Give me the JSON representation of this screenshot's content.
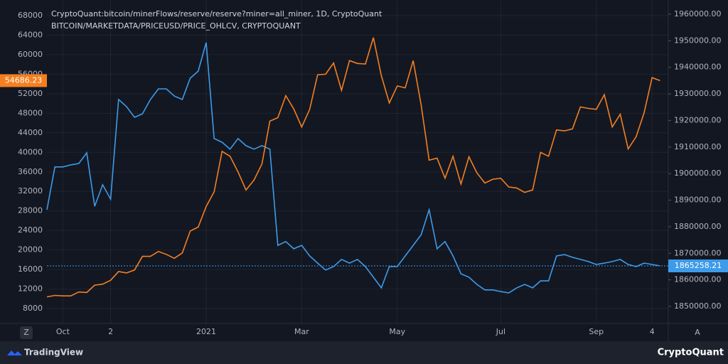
{
  "chart_data": {
    "type": "line",
    "categories": [
      null,
      null,
      "Oct",
      null,
      null,
      null,
      null,
      null,
      "2",
      null,
      null,
      null,
      null,
      null,
      null,
      null,
      null,
      null,
      null,
      null,
      "2021",
      null,
      null,
      null,
      null,
      null,
      null,
      null,
      null,
      null,
      null,
      null,
      "Mar",
      null,
      null,
      null,
      null,
      null,
      null,
      null,
      null,
      null,
      null,
      null,
      "May",
      null,
      null,
      null,
      null,
      null,
      null,
      null,
      null,
      null,
      null,
      null,
      null,
      "Jul",
      null,
      null,
      null,
      null,
      null,
      null,
      null,
      null,
      null,
      null,
      null,
      "Sep",
      null,
      null,
      null,
      null,
      null,
      null,
      "4",
      null
    ],
    "series": [
      {
        "name": "CryptoQuant:bitcoin/minerFlows/reserve/reserve?miner=all_miner, 1D, CryptoQuant",
        "color": "#3d9be9",
        "axis": "y2",
        "values": [
          1886400,
          1902500,
          1902500,
          1903300,
          1903800,
          1907800,
          1887700,
          1895800,
          1890400,
          1927900,
          1925200,
          1921200,
          1922500,
          1927900,
          1931900,
          1931900,
          1929200,
          1927900,
          1935900,
          1938600,
          1949300,
          1913200,
          1911800,
          1909200,
          1913200,
          1910500,
          1909200,
          1910500,
          1909200,
          1873000,
          1874400,
          1871700,
          1873000,
          1869000,
          1866300,
          1863700,
          1865000,
          1867700,
          1866300,
          1867700,
          1865000,
          1861000,
          1857000,
          1865000,
          1865000,
          1869000,
          1873000,
          1877000,
          1886400,
          1871700,
          1874400,
          1869000,
          1862300,
          1861000,
          1858300,
          1856200,
          1856200,
          1855600,
          1855100,
          1857000,
          1858300,
          1857000,
          1859600,
          1859600,
          1869000,
          1869500,
          1868500,
          1867700,
          1866900,
          1865800,
          1866300,
          1866900,
          1867700,
          1865800,
          1865000,
          1866300,
          1865800,
          1865258.21
        ]
      },
      {
        "name": "BITCOIN/MARKETDATA/PRICEUSD/PRICE_OHLCV, CRYPTOQUANT",
        "color": "#f57f20",
        "values": [
          10400,
          10700,
          10600,
          10600,
          11400,
          11300,
          12800,
          13000,
          13800,
          15600,
          15300,
          15900,
          18700,
          18700,
          19700,
          19100,
          18300,
          19400,
          23900,
          24700,
          28900,
          31900,
          40200,
          39200,
          36000,
          32300,
          34300,
          37600,
          46400,
          47100,
          51600,
          48900,
          45200,
          48800,
          55900,
          56000,
          58300,
          52700,
          58800,
          58200,
          58100,
          63500,
          55700,
          50100,
          53600,
          53200,
          58800,
          49700,
          38400,
          38800,
          34700,
          39200,
          33500,
          39100,
          35800,
          33700,
          34500,
          34700,
          32900,
          32700,
          31800,
          32300,
          40000,
          39200,
          44600,
          44400,
          44800,
          49300,
          49000,
          48800,
          51800,
          45200,
          47800,
          40700,
          43200,
          48100,
          55300,
          54686.23
        ]
      }
    ],
    "ylim": [
      4950,
      71200
    ],
    "yticks": [
      8000,
      12000,
      16000,
      20000,
      24000,
      28000,
      32000,
      36000,
      40000,
      44000,
      48000,
      52000,
      56000,
      60000,
      64000,
      68000
    ],
    "y2lim": [
      1843580,
      1965350
    ],
    "y2ticks": [
      {
        "value": 1850000,
        "label": "1850000.00"
      },
      {
        "value": 1860000,
        "label": "1860000.00"
      },
      {
        "value": 1870000,
        "label": "1870000.00"
      },
      {
        "value": 1880000,
        "label": "1880000.00"
      },
      {
        "value": 1890000,
        "label": "1890000.00"
      },
      {
        "value": 1900000,
        "label": "1900000.00"
      },
      {
        "value": 1910000,
        "label": "1910000.00"
      },
      {
        "value": 1920000,
        "label": "1920000.00"
      },
      {
        "value": 1930000,
        "label": "1930000.00"
      },
      {
        "value": 1940000,
        "label": "1940000.00"
      },
      {
        "value": 1950000,
        "label": "1950000.00"
      },
      {
        "value": 1960000,
        "label": "1960000.00"
      }
    ],
    "grid": true
  },
  "controls": [
    "Z",
    "A"
  ],
  "footer": {
    "brand": "TradingView",
    "watermark": "CryptoQuant"
  }
}
